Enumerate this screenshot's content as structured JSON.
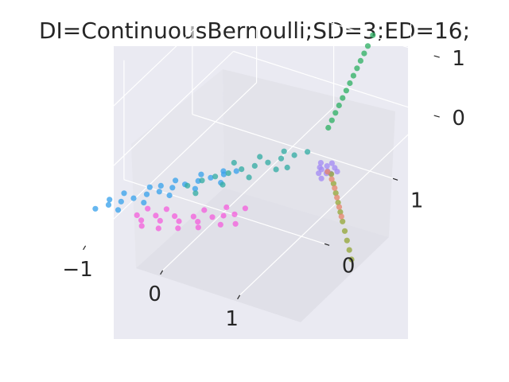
{
  "chart_data": {
    "type": "scatter",
    "projection": "3d",
    "title": "DI=ContinuousBernoulli;SD=3;ED=16;",
    "xlabel": "",
    "ylabel": "",
    "zlabel": "",
    "xlim": [
      -1.3,
      1.3
    ],
    "ylim": [
      -0.9,
      1.6
    ],
    "zlim": [
      -0.4,
      1.6
    ],
    "x_ticks": [
      {
        "value": -1,
        "label": "−1"
      },
      {
        "value": 0,
        "label": "0"
      },
      {
        "value": 1,
        "label": "1"
      }
    ],
    "y_ticks": [
      {
        "value": 0,
        "label": "0"
      },
      {
        "value": 1,
        "label": "1"
      }
    ],
    "z_ticks": [
      {
        "value": 0,
        "label": "0"
      },
      {
        "value": 1,
        "label": "1"
      }
    ],
    "grid": true,
    "legend": "none",
    "pane_color": "#eaeaf2",
    "series": [
      {
        "color": "#3ba3ec",
        "points": [
          [
            -1.05,
            -0.7,
            -0.02
          ],
          [
            -0.95,
            -0.62,
            0.0
          ],
          [
            -0.85,
            -0.55,
            0.02
          ],
          [
            -0.75,
            -0.48,
            0.04
          ],
          [
            -0.65,
            -0.4,
            0.06
          ],
          [
            -0.55,
            -0.33,
            0.07
          ],
          [
            -0.45,
            -0.25,
            0.09
          ],
          [
            -0.35,
            -0.18,
            0.11
          ],
          [
            -0.25,
            -0.1,
            0.12
          ],
          [
            -0.15,
            -0.03,
            0.14
          ],
          [
            -0.05,
            0.05,
            0.15
          ],
          [
            0.05,
            0.12,
            0.17
          ],
          [
            -0.9,
            -0.45,
            0.03
          ],
          [
            -0.7,
            -0.3,
            0.05
          ],
          [
            -0.5,
            -0.15,
            0.08
          ],
          [
            -0.3,
            0.0,
            0.1
          ],
          [
            -0.8,
            -0.65,
            0.01
          ],
          [
            -0.6,
            -0.5,
            0.05
          ],
          [
            -0.4,
            -0.35,
            0.09
          ],
          [
            -0.2,
            -0.2,
            0.12
          ],
          [
            0.0,
            -0.05,
            0.14
          ],
          [
            -1.0,
            -0.55,
            -0.01
          ],
          [
            -0.6,
            -0.25,
            0.06
          ],
          [
            -0.1,
            0.1,
            0.13
          ]
        ]
      },
      {
        "color": "#36ada4",
        "points": [
          [
            -0.3,
            -0.2,
            0.13
          ],
          [
            -0.2,
            -0.1,
            0.15
          ],
          [
            -0.1,
            -0.02,
            0.17
          ],
          [
            0.0,
            0.06,
            0.18
          ],
          [
            0.1,
            0.14,
            0.2
          ],
          [
            0.2,
            0.22,
            0.21
          ],
          [
            0.3,
            0.3,
            0.22
          ],
          [
            0.4,
            0.38,
            0.24
          ],
          [
            0.5,
            0.46,
            0.25
          ],
          [
            0.6,
            0.54,
            0.26
          ],
          [
            -0.15,
            -0.25,
            0.12
          ],
          [
            0.05,
            -0.08,
            0.16
          ],
          [
            0.25,
            0.08,
            0.19
          ],
          [
            0.45,
            0.25,
            0.22
          ],
          [
            -0.05,
            0.2,
            0.18
          ],
          [
            0.15,
            0.35,
            0.2
          ],
          [
            0.35,
            0.48,
            0.23
          ],
          [
            0.55,
            0.3,
            0.24
          ]
        ]
      },
      {
        "color": "#f461dd",
        "points": [
          [
            -0.6,
            -0.6,
            -0.05
          ],
          [
            -0.5,
            -0.65,
            -0.04
          ],
          [
            -0.4,
            -0.55,
            -0.03
          ],
          [
            -0.3,
            -0.6,
            -0.02
          ],
          [
            -0.2,
            -0.5,
            -0.01
          ],
          [
            -0.1,
            -0.55,
            0.0
          ],
          [
            0.0,
            -0.45,
            0.01
          ],
          [
            0.1,
            -0.5,
            0.02
          ],
          [
            0.2,
            -0.4,
            0.03
          ],
          [
            0.3,
            -0.35,
            0.04
          ],
          [
            0.4,
            -0.3,
            0.05
          ],
          [
            -0.45,
            -0.7,
            -0.06
          ],
          [
            -0.25,
            -0.68,
            -0.04
          ],
          [
            -0.05,
            -0.62,
            -0.02
          ],
          [
            0.15,
            -0.55,
            0.0
          ],
          [
            0.35,
            -0.45,
            0.02
          ],
          [
            -0.55,
            -0.5,
            -0.03
          ],
          [
            -0.35,
            -0.45,
            -0.01
          ],
          [
            0.05,
            -0.35,
            0.03
          ],
          [
            0.25,
            -0.25,
            0.05
          ],
          [
            0.45,
            -0.2,
            0.06
          ],
          [
            0.5,
            -0.4,
            0.04
          ]
        ]
      },
      {
        "color": "#32b166",
        "points": [
          [
            0.55,
            0.9,
            0.25
          ],
          [
            0.57,
            0.93,
            0.35
          ],
          [
            0.59,
            0.96,
            0.45
          ],
          [
            0.61,
            0.99,
            0.55
          ],
          [
            0.63,
            1.02,
            0.65
          ],
          [
            0.65,
            1.05,
            0.75
          ],
          [
            0.67,
            1.08,
            0.85
          ],
          [
            0.69,
            1.11,
            0.95
          ],
          [
            0.71,
            1.14,
            1.05
          ],
          [
            0.73,
            1.17,
            1.15
          ],
          [
            0.75,
            1.2,
            1.25
          ],
          [
            0.77,
            1.23,
            1.35
          ],
          [
            0.8,
            1.27,
            1.5
          ]
        ]
      },
      {
        "color": "#a48cf4",
        "points": [
          [
            0.75,
            0.55,
            0.05
          ],
          [
            0.8,
            0.6,
            0.04
          ],
          [
            0.85,
            0.55,
            0.03
          ],
          [
            0.9,
            0.6,
            0.05
          ],
          [
            0.78,
            0.5,
            0.02
          ],
          [
            0.88,
            0.5,
            0.06
          ],
          [
            0.82,
            0.65,
            0.04
          ],
          [
            0.95,
            0.58,
            0.03
          ],
          [
            0.72,
            0.6,
            0.06
          ],
          [
            0.86,
            0.45,
            0.02
          ],
          [
            0.92,
            0.52,
            0.05
          ],
          [
            0.8,
            0.52,
            0.07
          ]
        ]
      },
      {
        "color": "#96a83b",
        "points": [
          [
            0.9,
            0.55,
            0.0
          ],
          [
            1.0,
            0.47,
            -0.03
          ],
          [
            1.1,
            0.39,
            -0.06
          ],
          [
            1.2,
            0.31,
            -0.09
          ],
          [
            1.3,
            0.23,
            -0.12
          ],
          [
            1.4,
            0.15,
            -0.15
          ],
          [
            1.5,
            0.07,
            -0.18
          ],
          [
            1.6,
            -0.01,
            -0.21
          ],
          [
            1.7,
            -0.09,
            -0.24
          ],
          [
            1.8,
            -0.17,
            -0.27
          ]
        ]
      },
      {
        "color": "#e5866d",
        "points": [
          [
            0.85,
            0.55,
            0.02
          ],
          [
            0.95,
            0.5,
            -0.01
          ],
          [
            1.05,
            0.43,
            -0.04
          ],
          [
            1.15,
            0.35,
            -0.07
          ],
          [
            1.25,
            0.27,
            -0.1
          ],
          [
            1.35,
            0.19,
            -0.13
          ]
        ]
      }
    ]
  }
}
